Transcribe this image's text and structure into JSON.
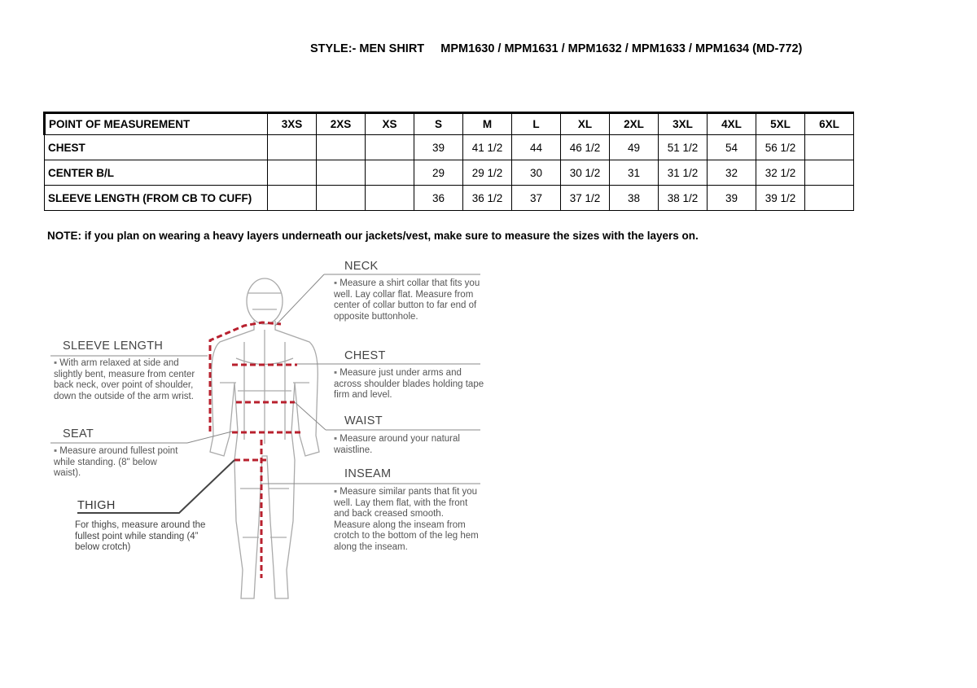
{
  "title": "STYLE:- MEN SHIRT     MPM1630 / MPM1631 / MPM1632 / MPM1633 / MPM1634 (MD-772)",
  "table": {
    "headers": [
      "POINT OF MEASUREMENT",
      "3XS",
      "2XS",
      "XS",
      "S",
      "M",
      "L",
      "XL",
      "2XL",
      "3XL",
      "4XL",
      "5XL",
      "6XL"
    ],
    "rows": [
      [
        "CHEST",
        "",
        "",
        "",
        "39",
        "41 1/2",
        "44",
        "46 1/2",
        "49",
        "51 1/2",
        "54",
        "56 1/2",
        ""
      ],
      [
        "CENTER B/L",
        "",
        "",
        "",
        "29",
        "29 1/2",
        "30",
        "30 1/2",
        "31",
        "31 1/2",
        "32",
        "32 1/2",
        ""
      ],
      [
        "SLEEVE LENGTH (FROM CB TO CUFF)",
        "",
        "",
        "",
        "36",
        "36 1/2",
        "37",
        "37 1/2",
        "38",
        "38 1/2",
        "39",
        "39 1/2",
        ""
      ]
    ]
  },
  "note": "NOTE: if you plan on wearing a heavy layers underneath our jackets/vest, make sure to measure the sizes with the layers on.",
  "guide": {
    "neck": {
      "label": "NECK",
      "text": "Measure a shirt collar that fits you well. Lay collar flat. Measure from center of collar button to far end of opposite buttonhole."
    },
    "chest": {
      "label": "CHEST",
      "text": "Measure just under arms and across shoulder blades holding tape firm and level."
    },
    "waist": {
      "label": "WAIST",
      "text": "Measure around your natural waistline."
    },
    "inseam": {
      "label": "INSEAM",
      "text": "Measure similar pants that fit you well. Lay them flat, with the front and back creased smooth. Measure along the inseam from crotch to the bottom of the leg hem along the inseam."
    },
    "sleeve": {
      "label": "SLEEVE LENGTH",
      "text": "With arm relaxed at side and slightly bent, measure from center back neck, over point of shoulder, down the outside of the arm wrist."
    },
    "seat": {
      "label": "SEAT",
      "text": "Measure around fullest point while standing. (8\" below waist)."
    },
    "thigh": {
      "label": "THIGH",
      "text": "For thighs, measure around the fullest point while standing (4” below crotch)"
    }
  },
  "colors": {
    "measure_line": "#b8202e",
    "body_outline": "#9a9a9a"
  }
}
